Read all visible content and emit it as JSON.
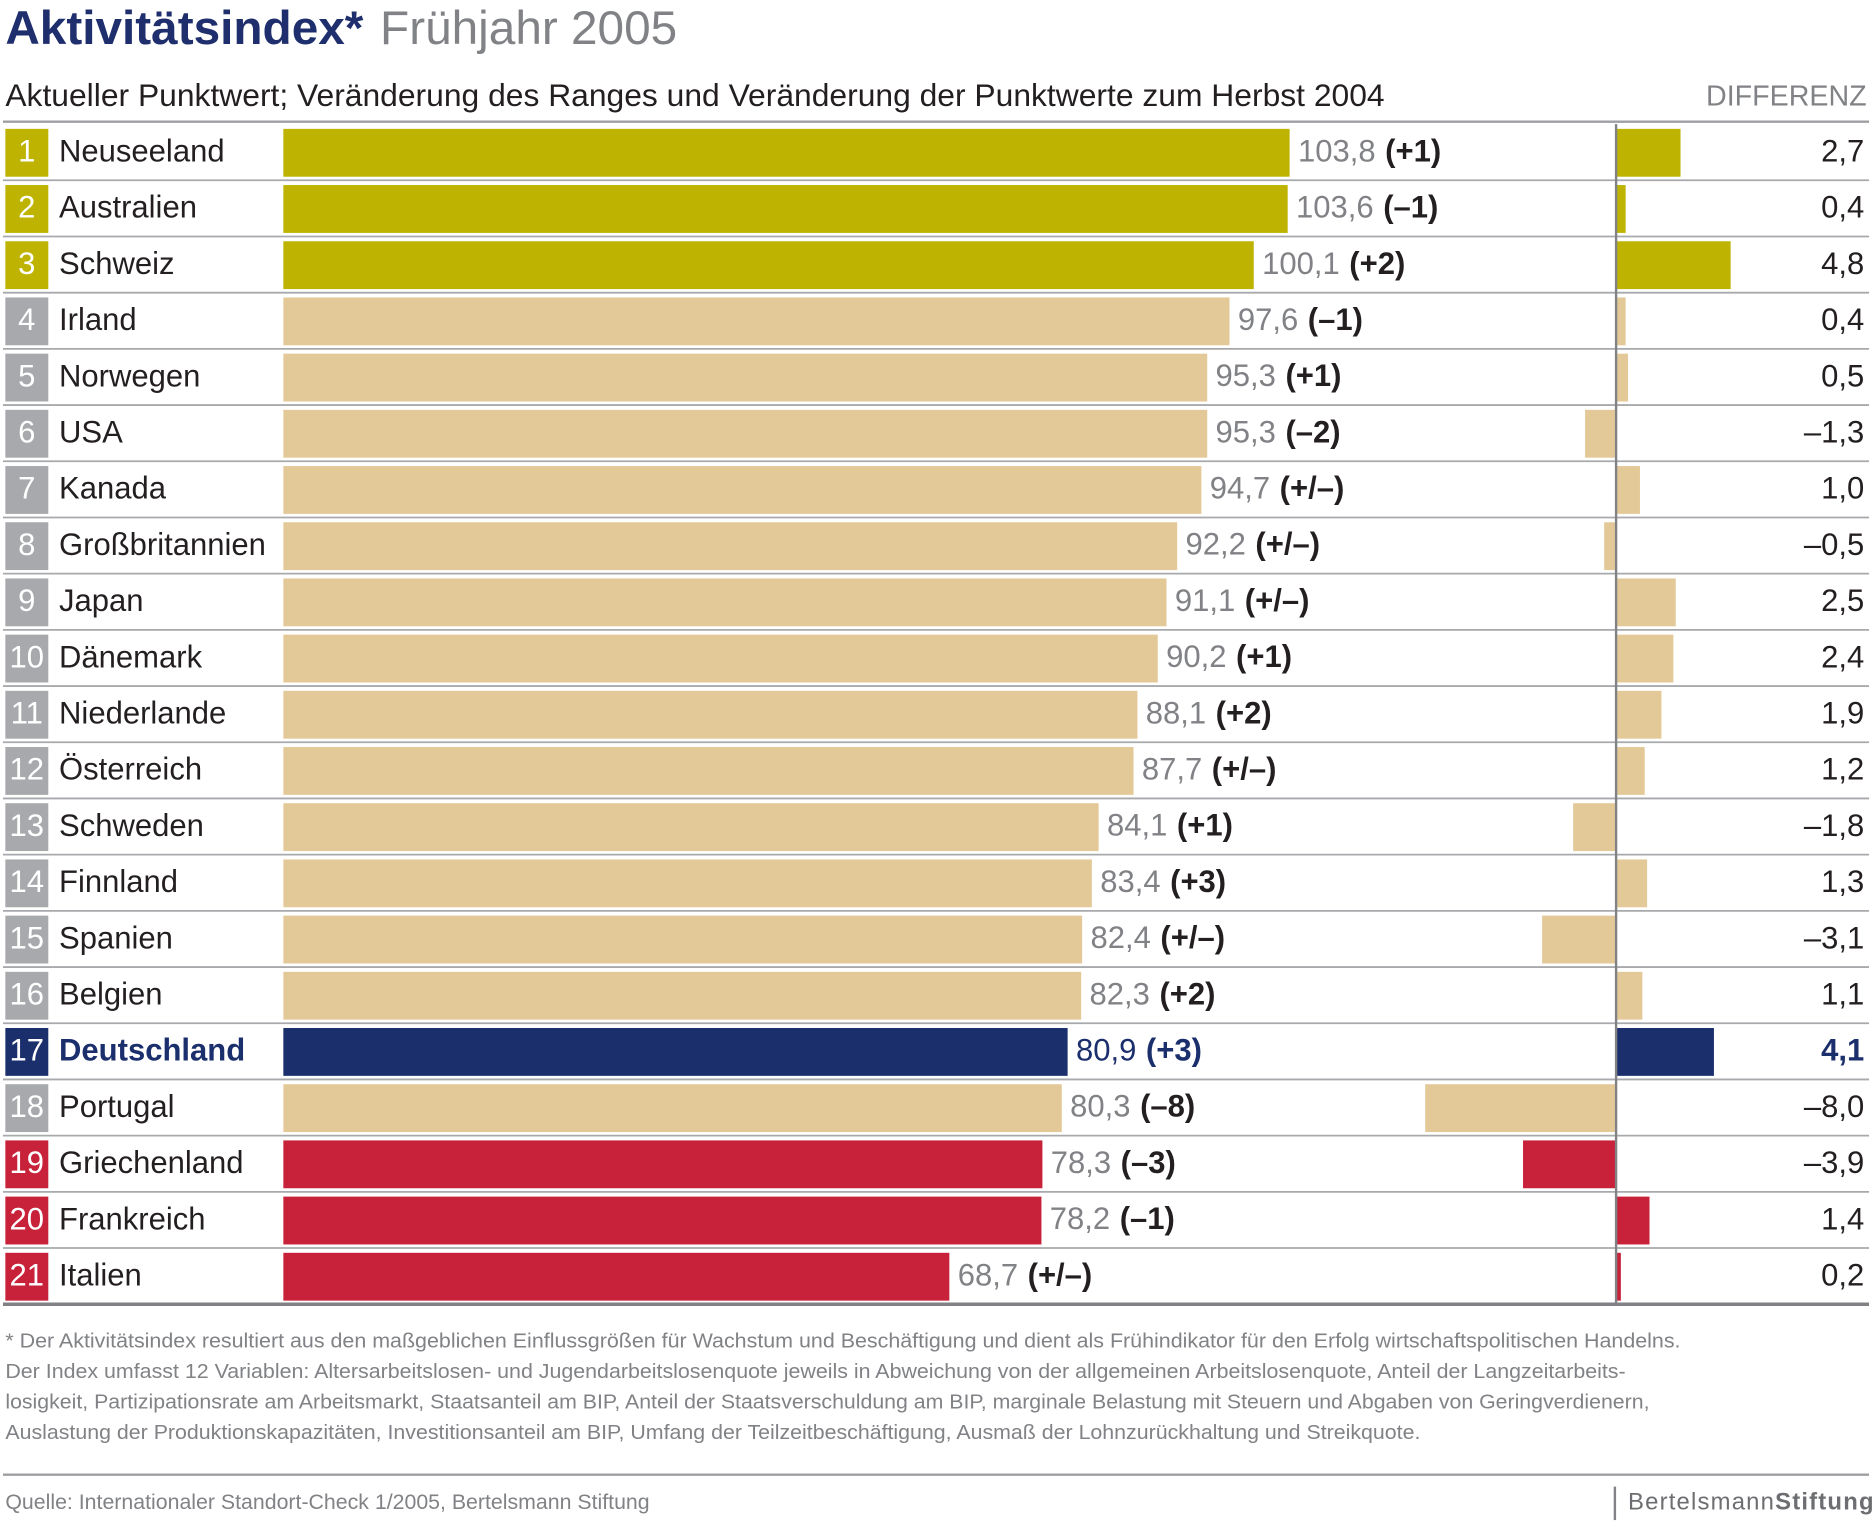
{
  "chart_data": {
    "type": "bar",
    "title": "Aktivitätsindex*",
    "title_suffix": "Frühjahr 2005",
    "subtitle": "Aktueller Punktwert; Veränderung des Ranges und Veränderung der Punktwerte zum Herbst 2004",
    "difference_header": "DIFFERENZ",
    "ranks": [
      1,
      2,
      3,
      4,
      5,
      6,
      7,
      8,
      9,
      10,
      11,
      12,
      13,
      14,
      15,
      16,
      17,
      18,
      19,
      20,
      21
    ],
    "categories": [
      "Neuseeland",
      "Australien",
      "Schweiz",
      "Irland",
      "Norwegen",
      "USA",
      "Kanada",
      "Großbritannien",
      "Japan",
      "Dänemark",
      "Niederlande",
      "Österreich",
      "Schweden",
      "Finnland",
      "Spanien",
      "Belgien",
      "Deutschland",
      "Portugal",
      "Griechenland",
      "Frankreich",
      "Italien"
    ],
    "values": [
      103.8,
      103.6,
      100.1,
      97.6,
      95.3,
      95.3,
      94.7,
      92.2,
      91.1,
      90.2,
      88.1,
      87.7,
      84.1,
      83.4,
      82.4,
      82.3,
      80.9,
      80.3,
      78.3,
      78.2,
      68.7
    ],
    "value_labels": [
      "103,8",
      "103,6",
      "100,1",
      "97,6",
      "95,3",
      "95,3",
      "94,7",
      "92,2",
      "91,1",
      "90,2",
      "88,1",
      "87,7",
      "84,1",
      "83,4",
      "82,4",
      "82,3",
      "80,9",
      "80,3",
      "78,3",
      "78,2",
      "68,7"
    ],
    "rank_changes": [
      "(+1)",
      "(–1)",
      "(+2)",
      "(–1)",
      "(+1)",
      "(–2)",
      "(+/–)",
      "(+/–)",
      "(+/–)",
      "(+1)",
      "(+2)",
      "(+/–)",
      "(+1)",
      "(+3)",
      "(+/–)",
      "(+2)",
      "(+3)",
      "(–8)",
      "(–3)",
      "(–1)",
      "(+/–)"
    ],
    "colors": [
      "#bdb300",
      "#bdb300",
      "#bdb300",
      "#e4c998",
      "#e4c998",
      "#e4c998",
      "#e4c998",
      "#e4c998",
      "#e4c998",
      "#e4c998",
      "#e4c998",
      "#e4c998",
      "#e4c998",
      "#e4c998",
      "#e4c998",
      "#e4c998",
      "#1b2f6d",
      "#e4c998",
      "#c8223b",
      "#c8223b",
      "#c8223b"
    ],
    "rank_colors": [
      "#bdb300",
      "#bdb300",
      "#bdb300",
      "#a7a9ac",
      "#a7a9ac",
      "#a7a9ac",
      "#a7a9ac",
      "#a7a9ac",
      "#a7a9ac",
      "#a7a9ac",
      "#a7a9ac",
      "#a7a9ac",
      "#a7a9ac",
      "#a7a9ac",
      "#a7a9ac",
      "#a7a9ac",
      "#1b2f6d",
      "#a7a9ac",
      "#c8223b",
      "#c8223b",
      "#c8223b"
    ],
    "highlight": 16,
    "xlim": [
      0,
      104
    ],
    "differences": {
      "values": [
        2.7,
        0.4,
        4.8,
        0.4,
        0.5,
        -1.3,
        1.0,
        -0.5,
        2.5,
        2.4,
        1.9,
        1.2,
        -1.8,
        1.3,
        -3.1,
        1.1,
        4.1,
        -8.0,
        -3.9,
        1.4,
        0.2
      ],
      "value_labels": [
        "2,7",
        "0,4",
        "4,8",
        "0,4",
        "0,5",
        "–1,3",
        "1,0",
        "–0,5",
        "2,5",
        "2,4",
        "1,9",
        "1,2",
        "–1,8",
        "1,3",
        "–3,1",
        "1,1",
        "4,1",
        "–8,0",
        "–3,9",
        "1,4",
        "0,2"
      ],
      "xlim": [
        -8,
        10.6
      ]
    },
    "footnote": [
      "* Der Aktivitätsindex resultiert aus den maßgeblichen Einflussgrößen für Wachstum und Beschäftigung und dient als Frühindikator für den Erfolg wirtschaftspolitischen Handelns.",
      "Der Index umfasst 12 Variablen: Altersarbeitslosen- und Jugendarbeitslosenquote jeweils in Abweichung von der allgemeinen Arbeitslosenquote, Anteil der Langzeitarbeits-",
      "losigkeit, Partizipationsrate am Arbeitsmarkt, Staatsanteil am BIP, Anteil der Staatsverschuldung am BIP, marginale Belastung mit Steuern und Abgaben von Geringverdienern,",
      "Auslastung der Produktionskapazitäten, Investitionsanteil am BIP, Umfang der Teilzeitbeschäftigung, Ausmaß der Lohnzurückhaltung und Streikquote."
    ],
    "source": "Quelle: Internationaler Standort-Check 1/2005, Bertelsmann Stiftung",
    "logo": [
      "Bertelsmann",
      "Stiftung"
    ]
  }
}
